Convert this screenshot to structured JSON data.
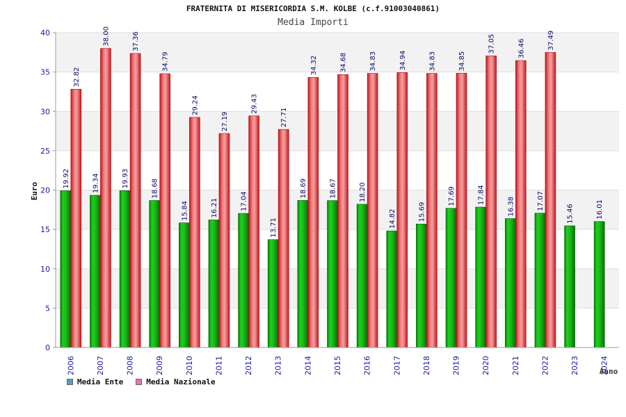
{
  "chart_data": {
    "type": "bar",
    "title": "FRATERNITA DI MISERICORDIA S.M. KOLBE (c.f.91003040861)",
    "subtitle": "Media Importi",
    "xlabel": "Anno",
    "ylabel": "Euro",
    "ylim": [
      0,
      40
    ],
    "yticks": [
      0,
      5,
      10,
      15,
      20,
      25,
      30,
      35,
      40
    ],
    "grid": true,
    "legend_position": "bottom-left",
    "categories": [
      "2006",
      "2007",
      "2008",
      "2009",
      "2010",
      "2011",
      "2012",
      "2013",
      "2014",
      "2015",
      "2016",
      "2017",
      "2018",
      "2019",
      "2020",
      "2021",
      "2022",
      "2023",
      "2024"
    ],
    "series": [
      {
        "name": "Media Ente",
        "legend_color": "#5b9bd5",
        "bar_color": "#1aa81a",
        "values": [
          19.92,
          19.34,
          19.93,
          18.68,
          15.84,
          16.21,
          17.04,
          13.71,
          18.69,
          18.67,
          18.2,
          14.82,
          15.69,
          17.69,
          17.84,
          16.38,
          17.07,
          15.46,
          16.01
        ],
        "labels": [
          "19.92",
          "19.34",
          "19.93",
          "18.68",
          "15.84",
          "16.21",
          "17.04",
          "13.71",
          "18.69",
          "18.67",
          "18.20",
          "14.82",
          "15.69",
          "17.69",
          "17.84",
          "16.38",
          "17.07",
          "15.46",
          "16.01"
        ]
      },
      {
        "name": "Media Nazionale",
        "legend_color": "#e07ab0",
        "bar_color": "#e8262e",
        "values": [
          32.82,
          38.0,
          37.36,
          34.79,
          29.24,
          27.19,
          29.43,
          27.71,
          34.32,
          34.68,
          34.83,
          34.94,
          34.83,
          34.85,
          37.05,
          36.46,
          37.49,
          null,
          null
        ],
        "labels": [
          "32.82",
          "38.00",
          "37.36",
          "34.79",
          "29.24",
          "27.19",
          "29.43",
          "27.71",
          "34.32",
          "34.68",
          "34.83",
          "34.94",
          "34.83",
          "34.85",
          "37.05",
          "36.46",
          "37.49",
          "",
          ""
        ]
      }
    ]
  }
}
